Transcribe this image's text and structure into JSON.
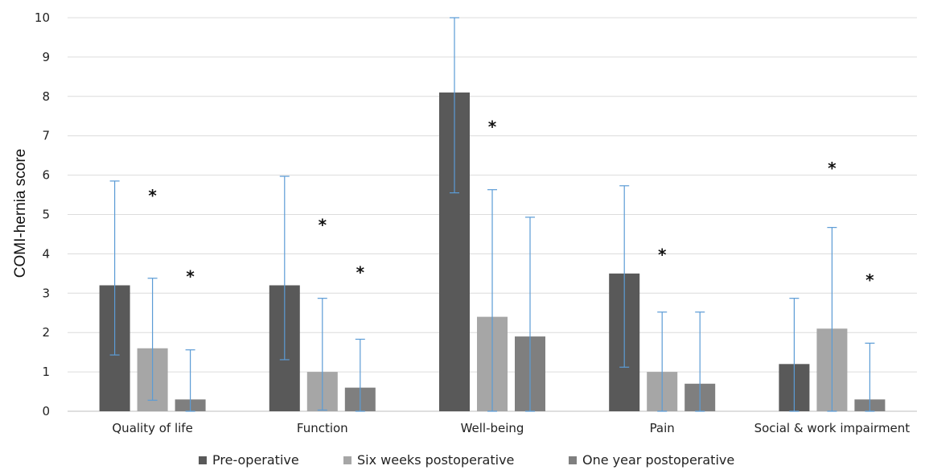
{
  "chart_data": {
    "type": "bar",
    "title": "",
    "xlabel": "",
    "ylabel": "COMI-hernia score",
    "ylim": [
      0,
      10
    ],
    "yticks": [
      0,
      1,
      2,
      3,
      4,
      5,
      6,
      7,
      8,
      9,
      10
    ],
    "grid": true,
    "legend_position": "bottom",
    "categories": [
      "Quality of life",
      "Function",
      "Well-being",
      "Pain",
      "Social & work impairment"
    ],
    "series": [
      {
        "name": "Pre-operative",
        "color": "#595959",
        "values": [
          3.2,
          3.2,
          8.1,
          3.5,
          1.2
        ],
        "error_low": [
          1.43,
          1.31,
          5.55,
          1.12,
          0
        ],
        "error_high": [
          5.85,
          5.97,
          10.0,
          5.73,
          2.87
        ],
        "significance": [
          "",
          "",
          "",
          "",
          ""
        ]
      },
      {
        "name": "Six weeks postoperative",
        "color": "#a6a6a6",
        "values": [
          1.6,
          1.0,
          2.4,
          1.0,
          2.1
        ],
        "error_low": [
          0.28,
          0.03,
          0,
          0,
          0
        ],
        "error_high": [
          3.38,
          2.87,
          5.63,
          2.52,
          4.67
        ],
        "significance": [
          "*",
          "*",
          "*",
          "*",
          "*"
        ]
      },
      {
        "name": "One year postoperative",
        "color": "#7f7f7f",
        "values": [
          0.3,
          0.6,
          1.9,
          0.7,
          0.3
        ],
        "error_low": [
          0,
          0,
          0,
          0,
          0
        ],
        "error_high": [
          1.56,
          1.83,
          4.93,
          2.52,
          1.73
        ],
        "significance": [
          "*",
          "*",
          "",
          "",
          "*"
        ]
      }
    ],
    "significance_marker_values": [
      [
        null,
        5.5,
        3.45
      ],
      [
        null,
        4.75,
        3.55
      ],
      [
        null,
        7.25,
        null
      ],
      [
        null,
        4.0,
        null
      ],
      [
        null,
        6.2,
        3.35
      ]
    ],
    "error_bar_color": "#5b9bd5"
  }
}
